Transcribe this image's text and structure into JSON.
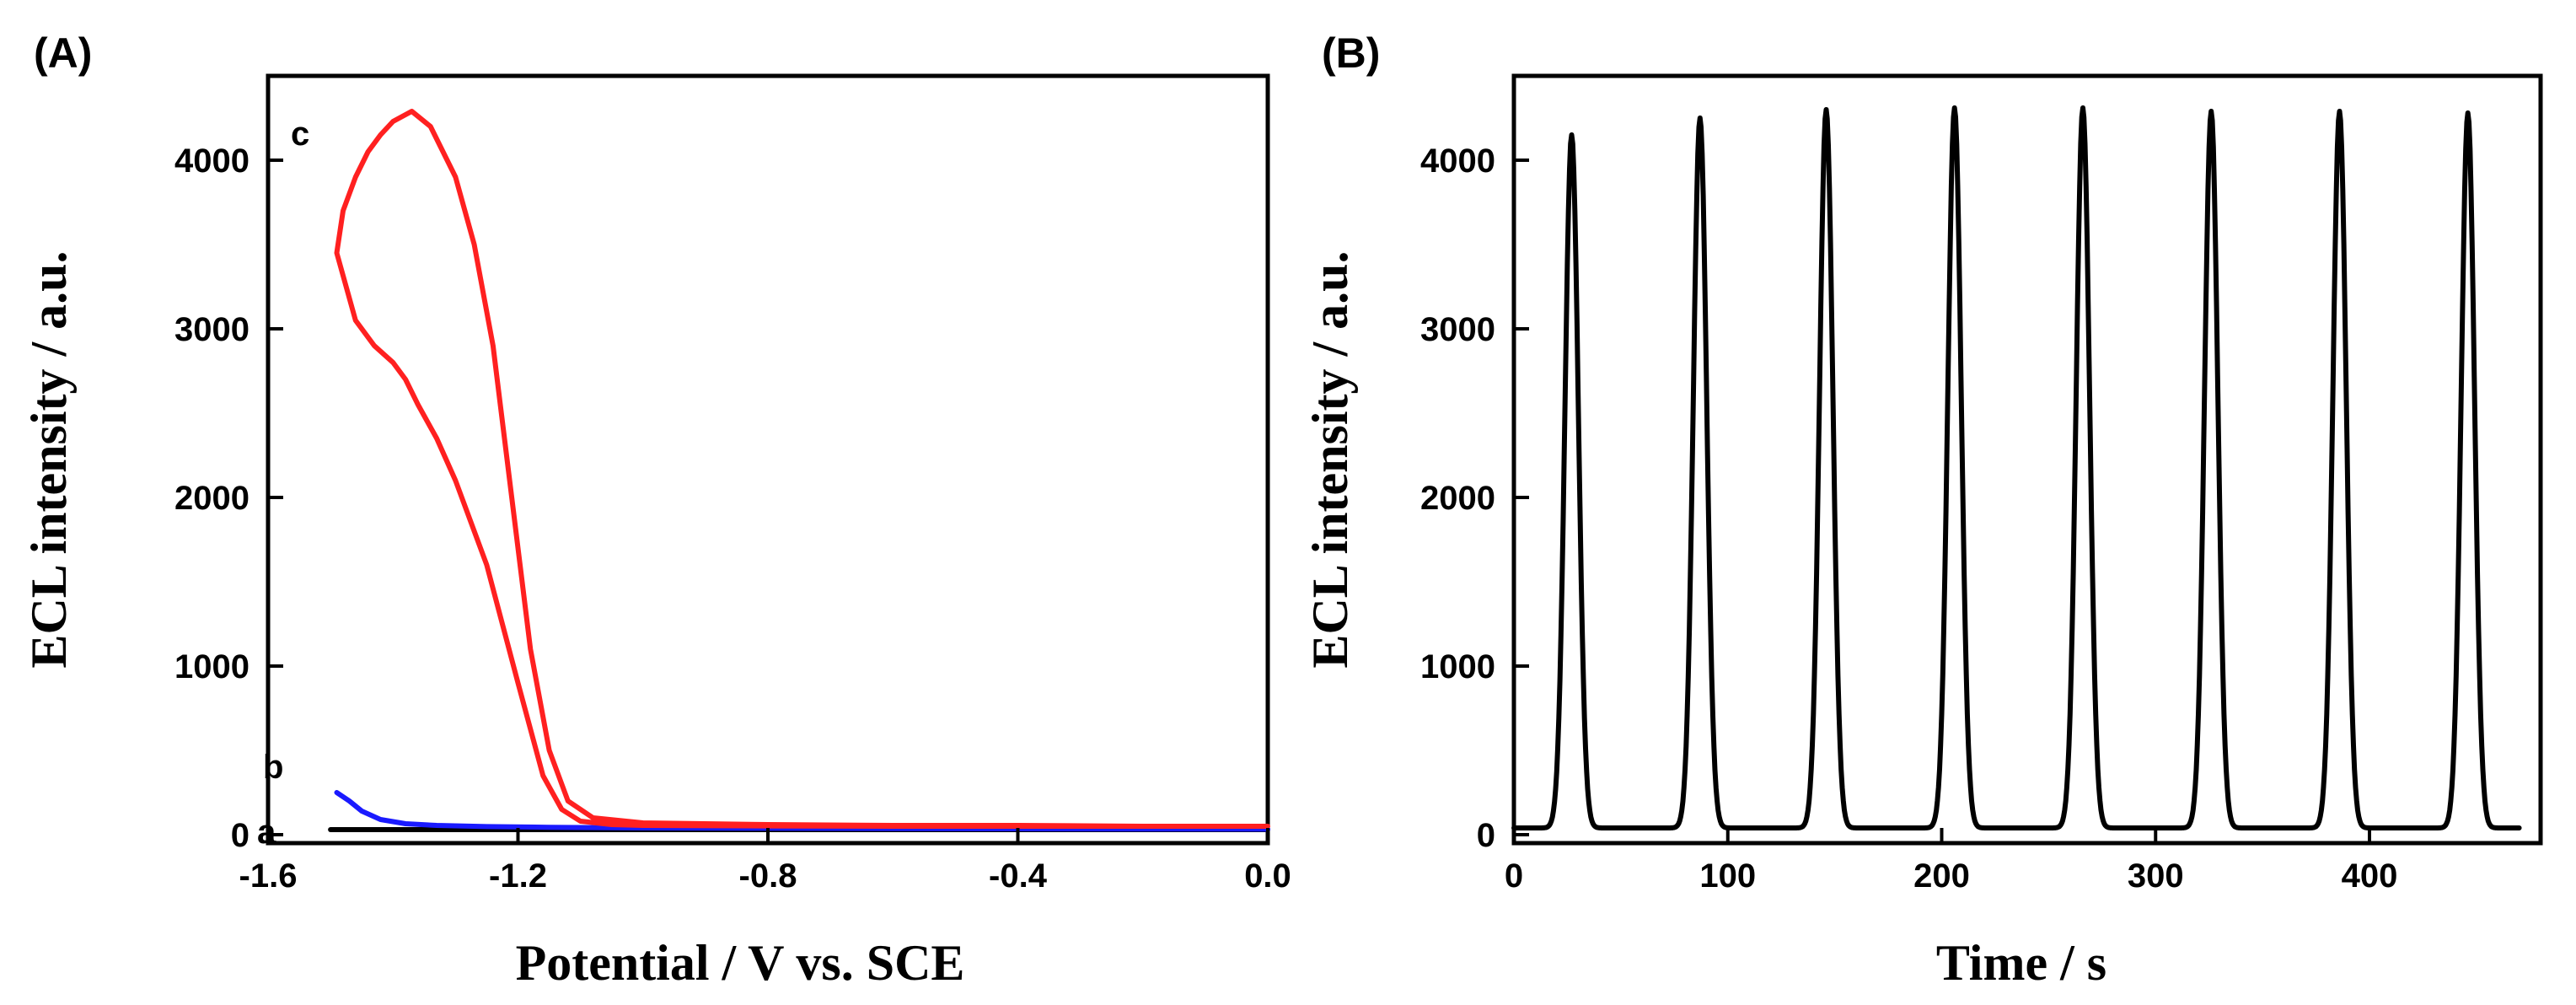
{
  "chart_data": [
    {
      "panel_label": "(A)",
      "type": "line",
      "xlabel": "Potential / V vs. SCE",
      "ylabel": "ECL intensity / a.u.",
      "xlim": [
        -1.6,
        0.0
      ],
      "ylim": [
        -50,
        4500
      ],
      "xticks": [
        -1.6,
        -1.2,
        -0.8,
        -0.4,
        0.0
      ],
      "xtick_labels": [
        "-1.6",
        "-1.2",
        "-0.8",
        "-0.4",
        "0.0"
      ],
      "yticks": [
        0,
        1000,
        2000,
        3000,
        4000
      ],
      "ytick_labels": [
        "0",
        "1000",
        "2000",
        "3000",
        "4000"
      ],
      "series": [
        {
          "name": "a",
          "color": "#000000",
          "x": [
            -1.5,
            -1.4,
            -1.2,
            -1.0,
            -0.8,
            -0.6,
            -0.4,
            -0.2,
            0.0
          ],
          "y": [
            30,
            30,
            30,
            30,
            30,
            30,
            30,
            30,
            30
          ]
        },
        {
          "name": "b",
          "color": "#1a1aff",
          "x": [
            -1.49,
            -1.47,
            -1.45,
            -1.42,
            -1.38,
            -1.33,
            -1.25,
            -1.15,
            -1.0,
            -0.8,
            -0.6,
            -0.4,
            -0.2,
            0.0
          ],
          "y": [
            250,
            200,
            140,
            90,
            65,
            55,
            48,
            44,
            40,
            38,
            36,
            35,
            34,
            33
          ]
        },
        {
          "name": "c",
          "color": "#ff2020",
          "x": [
            0.0,
            -0.2,
            -0.4,
            -0.6,
            -0.8,
            -1.0,
            -1.05,
            -1.1,
            -1.13,
            -1.16,
            -1.2,
            -1.25,
            -1.3,
            -1.33,
            -1.36,
            -1.38,
            -1.4,
            -1.43,
            -1.46,
            -1.49,
            -1.48,
            -1.46,
            -1.44,
            -1.42,
            -1.4,
            -1.37,
            -1.34,
            -1.3,
            -1.27,
            -1.24,
            -1.21,
            -1.18,
            -1.15,
            -1.12,
            -1.08,
            -1.0,
            -0.8,
            -0.6,
            -0.4,
            -0.2,
            0.0
          ],
          "y": [
            50,
            50,
            50,
            50,
            52,
            55,
            60,
            80,
            150,
            350,
            900,
            1600,
            2100,
            2350,
            2550,
            2700,
            2800,
            2900,
            3050,
            3450,
            3700,
            3900,
            4050,
            4150,
            4230,
            4290,
            4200,
            3900,
            3500,
            2900,
            2000,
            1100,
            500,
            200,
            100,
            70,
            60,
            55,
            55,
            50,
            50
          ]
        }
      ],
      "curve_labels": [
        "a",
        "b",
        "c"
      ]
    },
    {
      "panel_label": "(B)",
      "type": "line",
      "xlabel": "Time / s",
      "ylabel": "ECL intensity / a.u.",
      "xlim": [
        0,
        480
      ],
      "ylim": [
        -50,
        4500
      ],
      "xticks": [
        0,
        100,
        200,
        300,
        400
      ],
      "xtick_labels": [
        "0",
        "100",
        "200",
        "300",
        "400"
      ],
      "yticks": [
        0,
        1000,
        2000,
        3000,
        4000
      ],
      "ytick_labels": [
        "0",
        "1000",
        "2000",
        "3000",
        "4000"
      ],
      "baseline": 40,
      "peak_width_s": 10,
      "peaks": [
        {
          "t": 27,
          "y": 4150
        },
        {
          "t": 87,
          "y": 4250
        },
        {
          "t": 146,
          "y": 4300
        },
        {
          "t": 206,
          "y": 4310
        },
        {
          "t": 266,
          "y": 4310
        },
        {
          "t": 326,
          "y": 4290
        },
        {
          "t": 386,
          "y": 4290
        },
        {
          "t": 446,
          "y": 4280
        }
      ],
      "series_color": "#000000"
    }
  ]
}
